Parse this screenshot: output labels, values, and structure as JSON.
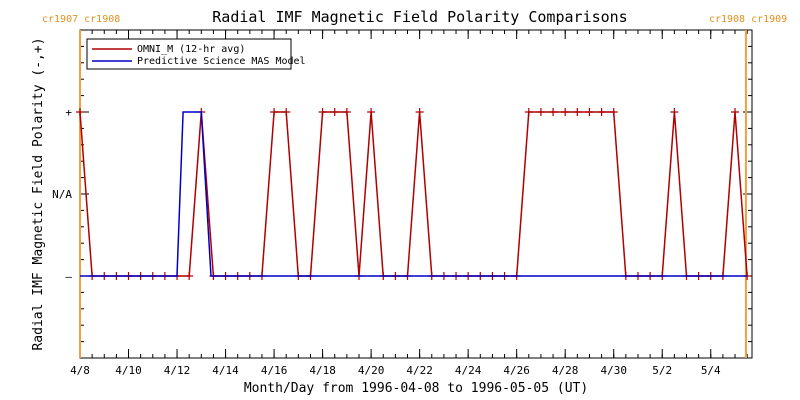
{
  "chart_data": {
    "type": "line",
    "title": "Radial IMF Magnetic Field Polarity Comparisons",
    "xlabel": "Month/Day from 1996-04-08 to 1996-05-05 (UT)",
    "ylabel": "Radial IMF Magnetic Field Polarity (-,+)",
    "xlim": [
      0,
      27.7
    ],
    "ylim": [
      -2,
      2
    ],
    "x_tick_labels": [
      {
        "x": 0,
        "label": "4/8"
      },
      {
        "x": 2,
        "label": "4/10"
      },
      {
        "x": 4,
        "label": "4/12"
      },
      {
        "x": 6,
        "label": "4/14"
      },
      {
        "x": 8,
        "label": "4/16"
      },
      {
        "x": 10,
        "label": "4/18"
      },
      {
        "x": 12,
        "label": "4/20"
      },
      {
        "x": 14,
        "label": "4/22"
      },
      {
        "x": 16,
        "label": "4/24"
      },
      {
        "x": 18,
        "label": "4/26"
      },
      {
        "x": 20,
        "label": "4/28"
      },
      {
        "x": 22,
        "label": "4/30"
      },
      {
        "x": 24,
        "label": "5/2"
      },
      {
        "x": 26,
        "label": "5/4"
      }
    ],
    "y_tick_labels": [
      {
        "y": 1,
        "label": "+"
      },
      {
        "y": 0,
        "label": "N/A"
      },
      {
        "y": -1,
        "label": "–"
      }
    ],
    "carrington_markers": [
      {
        "x": 0,
        "left": "cr1907",
        "right": "cr1908",
        "side": "left"
      },
      {
        "x": 27.45,
        "left": "cr1908",
        "right": "cr1909",
        "side": "right"
      }
    ],
    "series": [
      {
        "name": "OMNI_M (12-hr avg)",
        "color": "#b00000",
        "marker": "plus",
        "x": [
          0,
          0.5,
          1,
          1.5,
          2,
          2.5,
          3,
          3.5,
          4,
          4.5,
          5,
          5.5,
          6,
          6.5,
          7,
          7.5,
          8,
          8.5,
          9,
          9.5,
          10,
          10.5,
          11,
          11.5,
          12,
          12.5,
          13,
          13.5,
          14,
          14.5,
          15,
          15.5,
          16,
          16.5,
          17,
          17.5,
          18,
          18.5,
          19,
          19.5,
          20,
          20.5,
          21,
          21.5,
          22,
          22.5,
          23,
          23.5,
          24,
          24.5,
          25,
          25.5,
          26,
          26.5,
          27,
          27.5
        ],
        "y": [
          1,
          -1,
          -1,
          -1,
          -1,
          -1,
          -1,
          -1,
          -1,
          -1,
          1,
          -1,
          -1,
          -1,
          -1,
          -1,
          1,
          1,
          -1,
          -1,
          1,
          1,
          1,
          -1,
          1,
          -1,
          -1,
          -1,
          1,
          -1,
          -1,
          -1,
          -1,
          -1,
          -1,
          -1,
          -1,
          1,
          1,
          1,
          1,
          1,
          1,
          1,
          1,
          -1,
          -1,
          -1,
          -1,
          1,
          -1,
          -1,
          -1,
          -1,
          1,
          -1
        ]
      },
      {
        "name": "Predictive Science MAS Model",
        "color": "#0000c8",
        "marker": "none",
        "x": [
          0,
          4.0,
          4.25,
          5.0,
          5.4,
          27.5
        ],
        "y": [
          -1,
          -1,
          1,
          1,
          -1,
          -1
        ],
        "segments_note": ""
      }
    ],
    "grid": false,
    "legend": "top-left"
  }
}
